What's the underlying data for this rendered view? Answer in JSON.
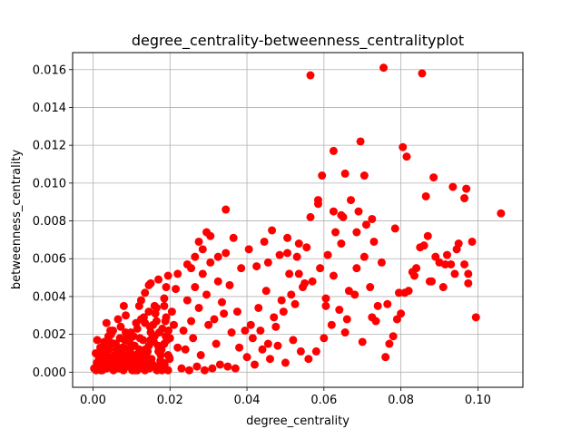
{
  "chart_data": {
    "type": "scatter",
    "title": "degree_centrality-betweenness_centralityplot",
    "xlabel": "degree_centrality",
    "ylabel": "betweenness_centrality",
    "xlim": [
      -0.0053,
      0.1117
    ],
    "ylim": [
      -0.0008,
      0.0169
    ],
    "x_ticks": [
      0.0,
      0.02,
      0.04,
      0.06,
      0.08,
      0.1
    ],
    "x_tick_labels": [
      "0.00",
      "0.02",
      "0.04",
      "0.06",
      "0.08",
      "0.10"
    ],
    "y_ticks": [
      0.0,
      0.002,
      0.004,
      0.006,
      0.008,
      0.01,
      0.012,
      0.014,
      0.016
    ],
    "y_tick_labels": [
      "0.000",
      "0.002",
      "0.004",
      "0.006",
      "0.008",
      "0.010",
      "0.012",
      "0.014",
      "0.016"
    ],
    "grid": true,
    "marker_color": "#ff0000",
    "series": [
      {
        "x": [
          0.0008,
          0.0013,
          0.0017,
          0.0021,
          0.0025,
          0.003,
          0.0034,
          0.0038,
          0.0042,
          0.0046,
          0.005,
          0.0055,
          0.006,
          0.0065,
          0.007,
          0.0075,
          0.008,
          0.0085,
          0.009,
          0.0095,
          0.01,
          0.0105,
          0.011,
          0.0115,
          0.012,
          0.0125,
          0.013,
          0.0135,
          0.014,
          0.0145,
          0.015,
          0.0155,
          0.016,
          0.0165,
          0.017,
          0.0175,
          0.018,
          0.0185,
          0.019,
          0.0195,
          0.02,
          0.021,
          0.022,
          0.001,
          0.0015,
          0.002,
          0.0028,
          0.0035,
          0.004,
          0.0048,
          0.0052,
          0.0058,
          0.0062,
          0.0068,
          0.0072,
          0.0078,
          0.0082,
          0.0088,
          0.0092,
          0.0098,
          0.0102,
          0.0108,
          0.0112,
          0.0118,
          0.0122,
          0.0128,
          0.0132,
          0.0138,
          0.0142,
          0.0148,
          0.0152,
          0.0158,
          0.0162,
          0.0168,
          0.0172,
          0.0178,
          0.0182,
          0.0188,
          0.0192,
          0.0198,
          0.0205,
          0.0005,
          0.0012,
          0.0022,
          0.0032,
          0.0044,
          0.0056,
          0.0066,
          0.0076,
          0.0086,
          0.0096,
          0.0106,
          0.0116,
          0.0126,
          0.0136,
          0.0146,
          0.0156,
          0.0166,
          0.0176,
          0.0186,
          0.0196,
          0.0003,
          0.0007,
          0.0011,
          0.0016,
          0.0019,
          0.0024,
          0.0029,
          0.0036,
          0.0041,
          0.0047,
          0.0053,
          0.0059,
          0.0064,
          0.0069,
          0.0074,
          0.0079,
          0.0084,
          0.0089,
          0.0094,
          0.0099,
          0.0109,
          0.0119,
          0.0129,
          0.0139,
          0.0149,
          0.0159,
          0.0169,
          0.0179,
          0.0189,
          0.0199,
          0.0035,
          0.0045,
          0.0055,
          0.0065,
          0.0075,
          0.0085,
          0.0095,
          0.0105,
          0.0115,
          0.0125,
          0.0135,
          0.0145,
          0.0155,
          0.0165,
          0.0175,
          0.0185,
          0.0195,
          0.008,
          0.012,
          0.016,
          0.0125,
          0.0135,
          0.015,
          0.017,
          0.0185,
          0.019,
          0.0215,
          0.022,
          0.0245,
          0.0265,
          0.0275,
          0.0295,
          0.023,
          0.025,
          0.027,
          0.029,
          0.031,
          0.033,
          0.035,
          0.037,
          0.024,
          0.026,
          0.028,
          0.03,
          0.032,
          0.034,
          0.036,
          0.038,
          0.0235,
          0.0255,
          0.0275,
          0.0295,
          0.0315,
          0.0335,
          0.0355,
          0.0375,
          0.0395,
          0.0245,
          0.0265,
          0.0285,
          0.0305,
          0.0325,
          0.0345,
          0.0365,
          0.0385,
          0.04,
          0.042,
          0.044,
          0.046,
          0.048,
          0.05,
          0.052,
          0.054,
          0.041,
          0.043,
          0.045,
          0.047,
          0.049,
          0.051,
          0.053,
          0.055,
          0.0405,
          0.0425,
          0.0445,
          0.0465,
          0.0485,
          0.0505,
          0.0525,
          0.0545,
          0.0415,
          0.0435,
          0.0455,
          0.0475,
          0.0495,
          0.0515,
          0.0535,
          0.0555,
          0.056,
          0.058,
          0.06,
          0.062,
          0.064,
          0.066,
          0.068,
          0.07,
          0.072,
          0.074,
          0.057,
          0.059,
          0.061,
          0.063,
          0.065,
          0.067,
          0.069,
          0.071,
          0.073,
          0.075,
          0.0565,
          0.0585,
          0.0605,
          0.0625,
          0.0645,
          0.0665,
          0.0685,
          0.0705,
          0.0725,
          0.076,
          0.078,
          0.08,
          0.082,
          0.084,
          0.086,
          0.088,
          0.09,
          0.092,
          0.094,
          0.077,
          0.079,
          0.081,
          0.083,
          0.085,
          0.087,
          0.089,
          0.091,
          0.093,
          0.095,
          0.0965,
          0.0975,
          0.097,
          0.0995,
          0.106,
          0.0975,
          0.0755,
          0.0855,
          0.0565,
          0.0625,
          0.0695,
          0.0805,
          0.0815,
          0.0865,
          0.0885,
          0.0935,
          0.0965,
          0.0595,
          0.0655,
          0.0705,
          0.0585,
          0.0625,
          0.0645,
          0.0685,
          0.0725,
          0.0785,
          0.0345,
          0.0305,
          0.0325,
          0.0145,
          0.0195,
          0.0255,
          0.0285,
          0.0455,
          0.0505,
          0.0535,
          0.0605,
          0.0655,
          0.0735,
          0.0765,
          0.0795,
          0.0835,
          0.0875,
          0.0915,
          0.0945,
          0.0985
        ],
        "y": [
          0.0001,
          0.0003,
          0.0002,
          0.0006,
          0.0004,
          0.0002,
          0.0009,
          0.0005,
          0.0012,
          0.0003,
          0.0008,
          0.0015,
          0.0004,
          0.0011,
          0.0018,
          0.0006,
          0.0013,
          0.0021,
          0.0007,
          0.0016,
          0.0003,
          0.0019,
          0.0009,
          0.0023,
          0.0012,
          0.0005,
          0.0017,
          0.0026,
          0.0008,
          0.0014,
          0.0021,
          0.0004,
          0.0019,
          0.0027,
          0.0011,
          0.0006,
          0.0023,
          0.0015,
          0.0029,
          0.0009,
          0.0018,
          0.0025,
          0.0013,
          0.0005,
          0.0008,
          0.0001,
          0.0014,
          0.0002,
          0.0019,
          0.0007,
          0.0022,
          0.0003,
          0.0012,
          0.0006,
          0.0024,
          0.0002,
          0.0017,
          0.0009,
          0.0005,
          0.0021,
          0.0001,
          0.0014,
          0.0026,
          0.0004,
          0.0018,
          0.0008,
          0.0029,
          0.0002,
          0.0011,
          0.0024,
          0.0007,
          0.0016,
          0.0031,
          0.0003,
          0.0021,
          0.0012,
          0.0005,
          0.0027,
          0.0017,
          0.0008,
          0.0032,
          0.0002,
          0.0004,
          0.0011,
          0.0006,
          0.0016,
          0.0009,
          0.0002,
          0.0013,
          0.0004,
          0.0011,
          0.0007,
          0.0003,
          0.0009,
          0.0012,
          0.0002,
          0.0025,
          0.0001,
          0.0009,
          0.0004,
          0.0022,
          0.0002,
          0.001,
          0.0017,
          0.0003,
          0.0013,
          0.0001,
          0.0016,
          0.0008,
          0.0004,
          0.002,
          0.0001,
          0.0015,
          0.0007,
          0.0002,
          0.001,
          0.0001,
          0.0008,
          0.0003,
          0.0018,
          0.0013,
          0.0001,
          0.0006,
          0.0003,
          0.0005,
          0.0017,
          0.0003,
          0.0014,
          0.0001,
          0.0019,
          0.0007,
          0.0026,
          0.0022,
          0.0003,
          0.0028,
          0.0002,
          0.003,
          0.0009,
          0.0004,
          0.0001,
          0.0028,
          0.0001,
          0.0032,
          0.0004,
          0.0034,
          0.0002,
          0.0035,
          0.0001,
          0.0035,
          0.0035,
          0.0035,
          0.0038,
          0.0042,
          0.0047,
          0.0049,
          0.0039,
          0.0045,
          0.0044,
          0.0052,
          0.0057,
          0.0061,
          0.0069,
          0.0074,
          0.0002,
          0.0001,
          0.0003,
          0.0001,
          0.0002,
          0.0004,
          0.0003,
          0.0002,
          0.0012,
          0.0018,
          0.0009,
          0.0025,
          0.0015,
          0.0031,
          0.0021,
          0.0013,
          0.0022,
          0.0027,
          0.0034,
          0.0041,
          0.0028,
          0.0037,
          0.0046,
          0.0032,
          0.0022,
          0.0038,
          0.0045,
          0.0052,
          0.0058,
          0.0048,
          0.0063,
          0.0071,
          0.0055,
          0.0008,
          0.0004,
          0.0012,
          0.0007,
          0.0014,
          0.0005,
          0.0017,
          0.0011,
          0.0025,
          0.0034,
          0.0043,
          0.0029,
          0.0038,
          0.0052,
          0.0061,
          0.0047,
          0.0065,
          0.0056,
          0.0069,
          0.0075,
          0.0062,
          0.0071,
          0.0036,
          0.0045,
          0.0018,
          0.0022,
          0.0015,
          0.0024,
          0.0032,
          0.0041,
          0.0052,
          0.0066,
          0.0007,
          0.0011,
          0.0018,
          0.0025,
          0.0033,
          0.0028,
          0.0041,
          0.0016,
          0.0045,
          0.0035,
          0.0048,
          0.0055,
          0.0062,
          0.0074,
          0.0082,
          0.0091,
          0.0085,
          0.0078,
          0.0069,
          0.0058,
          0.0082,
          0.0091,
          0.0039,
          0.0051,
          0.0068,
          0.0043,
          0.0055,
          0.0061,
          0.0029,
          0.0008,
          0.0019,
          0.0031,
          0.0043,
          0.0055,
          0.0067,
          0.0048,
          0.0058,
          0.0062,
          0.0052,
          0.0015,
          0.0028,
          0.0042,
          0.0053,
          0.0066,
          0.0072,
          0.0061,
          0.0045,
          0.0057,
          0.0068,
          0.0057,
          0.0047,
          0.0097,
          0.0029,
          0.0084,
          0.0052,
          0.0161,
          0.0158,
          0.0157,
          0.0117,
          0.0122,
          0.0119,
          0.0114,
          0.0093,
          0.0103,
          0.0098,
          0.0092,
          0.0104,
          0.0105,
          0.0104,
          0.0089,
          0.0085,
          0.0083,
          0.0074,
          0.0081,
          0.0076,
          0.0086,
          0.0072,
          0.0061,
          0.0046,
          0.0051,
          0.0055,
          0.0065,
          0.0058,
          0.0063,
          0.0068,
          0.0035,
          0.0021,
          0.0027,
          0.0036,
          0.0042,
          0.0051,
          0.0048,
          0.0057,
          0.0065,
          0.0069
        ]
      }
    ]
  }
}
